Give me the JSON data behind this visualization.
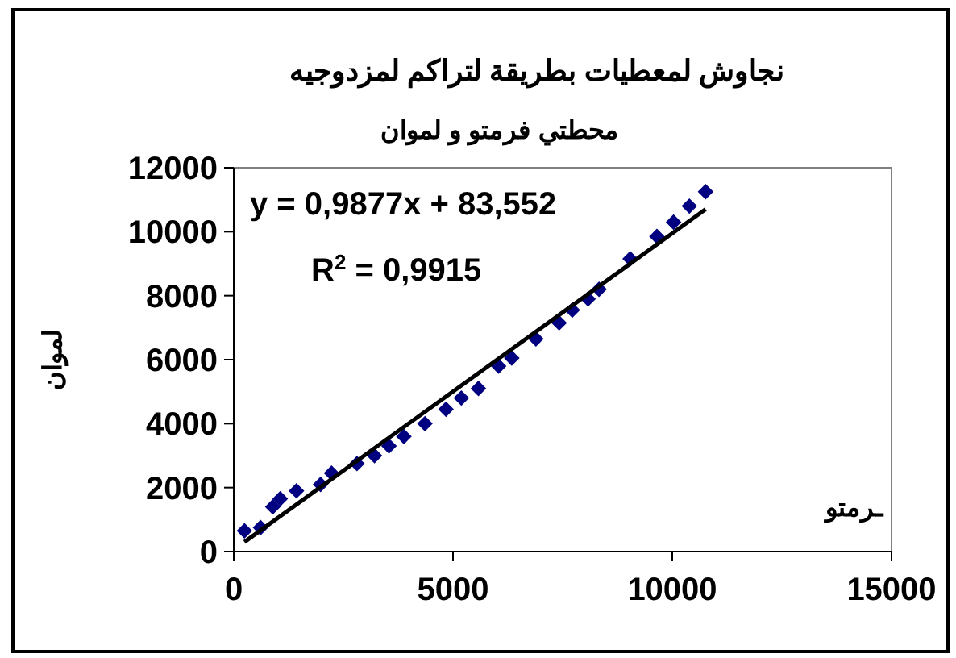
{
  "chart_data": {
    "type": "scatter",
    "title": "نجاوش لمعطيات بطريقة لتراكم لمزدوجيه",
    "subtitle": "محطتي فرمتو و لموان",
    "xlabel": "ـرمتو",
    "ylabel": "لموان",
    "xlim": [
      0,
      15000
    ],
    "xticks": [
      0,
      5000,
      10000,
      15000
    ],
    "ylim": [
      0,
      12000
    ],
    "yticks": [
      0,
      2000,
      4000,
      6000,
      8000,
      10000,
      12000
    ],
    "grid": false,
    "marker": "diamond",
    "annotations": [
      "y = 0,9877x + 83,552",
      "R$^{2}$ = 0,9915"
    ],
    "series": [
      {
        "color": "#000080",
        "x": [
          244,
          610,
          890,
          1060,
          1430,
          1980,
          2230,
          2810,
          3210,
          3540,
          3880,
          4360,
          4840,
          5190,
          5580,
          6040,
          6340,
          6890,
          7420,
          7720,
          8080,
          8330,
          9040,
          9650,
          10030,
          10390,
          10760
        ],
        "values": [
          650,
          750,
          1400,
          1650,
          1900,
          2100,
          2450,
          2750,
          3000,
          3300,
          3600,
          4000,
          4450,
          4800,
          5100,
          5800,
          6050,
          6650,
          7150,
          7550,
          7900,
          8200,
          9150,
          9850,
          10300,
          10800,
          11250
        ]
      },
      {
        "type": "line",
        "color": "#000000",
        "x": [
          244,
          10760
        ],
        "values": [
          300,
          10700
        ],
        "line_style": "solid",
        "marker": "none"
      }
    ]
  }
}
